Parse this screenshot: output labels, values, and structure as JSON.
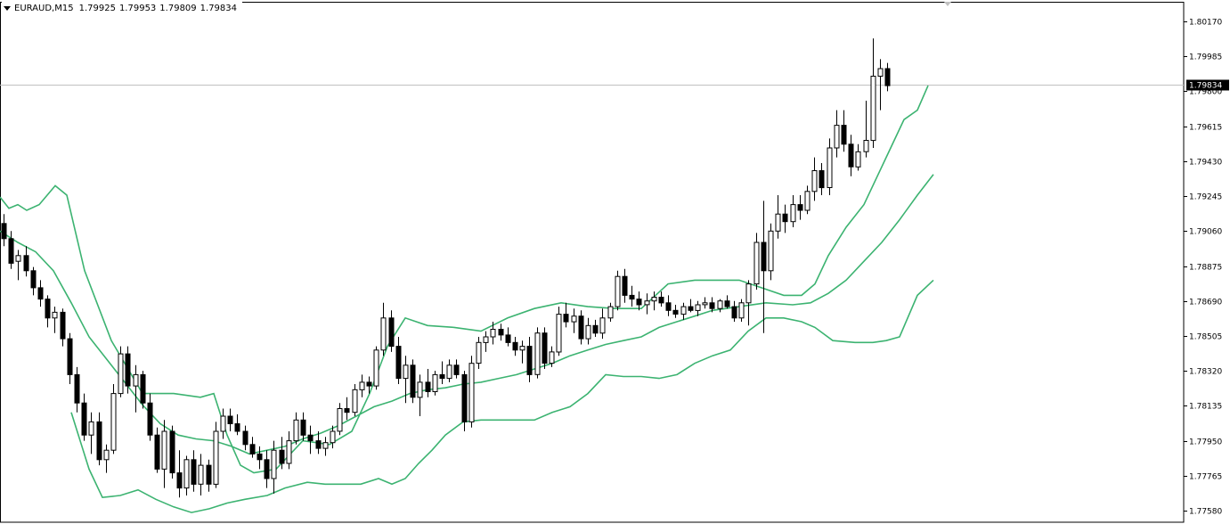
{
  "header": {
    "symbol_timeframe": "EURAUD,M15",
    "open": "1.79925",
    "high": "1.79953",
    "low": "1.79809",
    "close": "1.79834"
  },
  "colors": {
    "background": "#ffffff",
    "candle_up_body": "#ffffff",
    "candle_down_body": "#000000",
    "candle_outline": "#000000",
    "bollinger": "#3cb371",
    "bid_line": "#c0c0c0",
    "price_tag_bg": "#000000"
  },
  "chart_data": {
    "type": "candlestick",
    "instrument": "EURAUD",
    "timeframe": "M15",
    "y_axis_ticks": [
      "1.80170",
      "1.79985",
      "1.79800",
      "1.79615",
      "1.79430",
      "1.79245",
      "1.79060",
      "1.78875",
      "1.78690",
      "1.78505",
      "1.78320",
      "1.78135",
      "1.77950",
      "1.77765",
      "1.77580"
    ],
    "ylim": [
      1.7757,
      1.8026
    ],
    "current_price": "1.79834",
    "indicators": [
      "Bollinger Bands"
    ],
    "grid": false,
    "candles": [
      [
        1.791,
        1.7915,
        1.7898,
        1.7902
      ],
      [
        1.7902,
        1.7906,
        1.7886,
        1.7889
      ],
      [
        1.789,
        1.7896,
        1.788,
        1.7893
      ],
      [
        1.7893,
        1.7898,
        1.7882,
        1.7885
      ],
      [
        1.7885,
        1.7887,
        1.7872,
        1.7876
      ],
      [
        1.7876,
        1.788,
        1.7866,
        1.787
      ],
      [
        1.787,
        1.7872,
        1.7855,
        1.786
      ],
      [
        1.786,
        1.7866,
        1.7852,
        1.7863
      ],
      [
        1.7863,
        1.7865,
        1.7845,
        1.7849
      ],
      [
        1.7849,
        1.7852,
        1.7825,
        1.783
      ],
      [
        1.783,
        1.7834,
        1.781,
        1.7815
      ],
      [
        1.7815,
        1.782,
        1.7795,
        1.7798
      ],
      [
        1.7798,
        1.781,
        1.7788,
        1.7805
      ],
      [
        1.7805,
        1.781,
        1.7782,
        1.7785
      ],
      [
        1.7785,
        1.7793,
        1.7778,
        1.779
      ],
      [
        1.779,
        1.7825,
        1.7788,
        1.782
      ],
      [
        1.782,
        1.7845,
        1.7818,
        1.7841
      ],
      [
        1.7841,
        1.7845,
        1.782,
        1.7824
      ],
      [
        1.7824,
        1.7835,
        1.781,
        1.783
      ],
      [
        1.783,
        1.7832,
        1.7812,
        1.7815
      ],
      [
        1.7815,
        1.782,
        1.7795,
        1.7798
      ],
      [
        1.7798,
        1.7802,
        1.7778,
        1.778
      ],
      [
        1.778,
        1.7806,
        1.777,
        1.78
      ],
      [
        1.78,
        1.7803,
        1.7775,
        1.7778
      ],
      [
        1.7778,
        1.779,
        1.7765,
        1.777
      ],
      [
        1.777,
        1.7787,
        1.7766,
        1.7785
      ],
      [
        1.7785,
        1.779,
        1.7768,
        1.7772
      ],
      [
        1.7772,
        1.7788,
        1.7766,
        1.7782
      ],
      [
        1.7782,
        1.7785,
        1.7768,
        1.7772
      ],
      [
        1.7772,
        1.7805,
        1.777,
        1.78
      ],
      [
        1.78,
        1.7812,
        1.7796,
        1.7808
      ],
      [
        1.7808,
        1.7812,
        1.78,
        1.7804
      ],
      [
        1.7804,
        1.7809,
        1.7798,
        1.78
      ],
      [
        1.78,
        1.7803,
        1.779,
        1.7793
      ],
      [
        1.7793,
        1.7797,
        1.7786,
        1.7788
      ],
      [
        1.7788,
        1.7792,
        1.778,
        1.7785
      ],
      [
        1.7785,
        1.779,
        1.777,
        1.7775
      ],
      [
        1.7775,
        1.7795,
        1.7767,
        1.779
      ],
      [
        1.779,
        1.7797,
        1.778,
        1.7783
      ],
      [
        1.7783,
        1.78,
        1.778,
        1.7795
      ],
      [
        1.7795,
        1.781,
        1.7793,
        1.7806
      ],
      [
        1.7806,
        1.781,
        1.7795,
        1.7798
      ],
      [
        1.7798,
        1.7803,
        1.7788,
        1.7795
      ],
      [
        1.7795,
        1.78,
        1.7788,
        1.7791
      ],
      [
        1.7791,
        1.7797,
        1.7787,
        1.7794
      ],
      [
        1.7794,
        1.7803,
        1.7791,
        1.78
      ],
      [
        1.78,
        1.7815,
        1.7798,
        1.7812
      ],
      [
        1.7812,
        1.7818,
        1.7806,
        1.781
      ],
      [
        1.781,
        1.7825,
        1.7808,
        1.7822
      ],
      [
        1.7822,
        1.783,
        1.7818,
        1.7826
      ],
      [
        1.7826,
        1.7829,
        1.782,
        1.7824
      ],
      [
        1.7824,
        1.7845,
        1.7822,
        1.7843
      ],
      [
        1.7843,
        1.7868,
        1.784,
        1.786
      ],
      [
        1.786,
        1.7864,
        1.7842,
        1.7845
      ],
      [
        1.7845,
        1.785,
        1.7825,
        1.7828
      ],
      [
        1.7828,
        1.784,
        1.7815,
        1.7835
      ],
      [
        1.7835,
        1.7838,
        1.7815,
        1.7818
      ],
      [
        1.7818,
        1.783,
        1.7808,
        1.7826
      ],
      [
        1.7826,
        1.7833,
        1.7818,
        1.7821
      ],
      [
        1.7821,
        1.7832,
        1.7819,
        1.783
      ],
      [
        1.783,
        1.7837,
        1.7825,
        1.7828
      ],
      [
        1.7828,
        1.7838,
        1.7826,
        1.7835
      ],
      [
        1.7835,
        1.7838,
        1.7828,
        1.783
      ],
      [
        1.783,
        1.7832,
        1.78,
        1.7805
      ],
      [
        1.7805,
        1.784,
        1.7802,
        1.7836
      ],
      [
        1.7836,
        1.785,
        1.7833,
        1.7847
      ],
      [
        1.7847,
        1.7853,
        1.7842,
        1.785
      ],
      [
        1.785,
        1.7858,
        1.7846,
        1.7854
      ],
      [
        1.7854,
        1.7857,
        1.7848,
        1.7851
      ],
      [
        1.7851,
        1.7855,
        1.7845,
        1.7847
      ],
      [
        1.7847,
        1.785,
        1.784,
        1.7843
      ],
      [
        1.7843,
        1.7848,
        1.7836,
        1.7845
      ],
      [
        1.7845,
        1.785,
        1.7826,
        1.783
      ],
      [
        1.783,
        1.7855,
        1.7828,
        1.7852
      ],
      [
        1.7852,
        1.7855,
        1.7833,
        1.7836
      ],
      [
        1.7836,
        1.7845,
        1.7834,
        1.7842
      ],
      [
        1.7842,
        1.7866,
        1.784,
        1.7862
      ],
      [
        1.7862,
        1.7868,
        1.7855,
        1.7858
      ],
      [
        1.7858,
        1.7865,
        1.7852,
        1.7861
      ],
      [
        1.7861,
        1.7864,
        1.7846,
        1.7849
      ],
      [
        1.7849,
        1.786,
        1.7846,
        1.7856
      ],
      [
        1.7856,
        1.7859,
        1.785,
        1.7852
      ],
      [
        1.7852,
        1.7865,
        1.7849,
        1.786
      ],
      [
        1.786,
        1.7868,
        1.7858,
        1.7866
      ],
      [
        1.7866,
        1.7885,
        1.7864,
        1.7882
      ],
      [
        1.7882,
        1.7886,
        1.7868,
        1.7872
      ],
      [
        1.7872,
        1.7877,
        1.7866,
        1.787
      ],
      [
        1.787,
        1.7874,
        1.7864,
        1.7867
      ],
      [
        1.7867,
        1.7873,
        1.7862,
        1.7869
      ],
      [
        1.7869,
        1.7874,
        1.7864,
        1.7871
      ],
      [
        1.7871,
        1.7874,
        1.7866,
        1.7868
      ],
      [
        1.7868,
        1.7872,
        1.7861,
        1.7864
      ],
      [
        1.7864,
        1.7867,
        1.786,
        1.7862
      ],
      [
        1.7862,
        1.7868,
        1.7859,
        1.7866
      ],
      [
        1.7866,
        1.787,
        1.7863,
        1.7864
      ],
      [
        1.7864,
        1.7869,
        1.7861,
        1.7867
      ],
      [
        1.7867,
        1.7871,
        1.7865,
        1.7868
      ],
      [
        1.7868,
        1.7871,
        1.7863,
        1.7865
      ],
      [
        1.7865,
        1.787,
        1.7863,
        1.7869
      ],
      [
        1.7869,
        1.7872,
        1.7865,
        1.7866
      ],
      [
        1.7866,
        1.7869,
        1.7858,
        1.786
      ],
      [
        1.786,
        1.787,
        1.7858,
        1.7868
      ],
      [
        1.7868,
        1.788,
        1.7856,
        1.7878
      ],
      [
        1.7878,
        1.7905,
        1.7875,
        1.79
      ],
      [
        1.79,
        1.7922,
        1.7852,
        1.7885
      ],
      [
        1.7885,
        1.791,
        1.788,
        1.7906
      ],
      [
        1.7906,
        1.7925,
        1.7902,
        1.7915
      ],
      [
        1.7915,
        1.792,
        1.7905,
        1.7911
      ],
      [
        1.7911,
        1.7925,
        1.7908,
        1.792
      ],
      [
        1.792,
        1.7925,
        1.7912,
        1.7917
      ],
      [
        1.7917,
        1.793,
        1.7915,
        1.7927
      ],
      [
        1.7927,
        1.7945,
        1.7922,
        1.7938
      ],
      [
        1.7938,
        1.7942,
        1.7925,
        1.7929
      ],
      [
        1.7929,
        1.7955,
        1.7925,
        1.795
      ],
      [
        1.795,
        1.797,
        1.7945,
        1.7962
      ],
      [
        1.7962,
        1.797,
        1.7948,
        1.7952
      ],
      [
        1.7952,
        1.7957,
        1.7935,
        1.794
      ],
      [
        1.794,
        1.7952,
        1.7938,
        1.7948
      ],
      [
        1.7948,
        1.7975,
        1.7945,
        1.7954
      ],
      [
        1.7954,
        1.8008,
        1.795,
        1.7988
      ],
      [
        1.7988,
        1.7997,
        1.797,
        1.7992
      ],
      [
        1.7992,
        1.7995,
        1.798,
        1.7983
      ]
    ],
    "bollinger": {
      "upper": [
        [
          0,
          1.7924
        ],
        [
          10,
          1.7918
        ],
        [
          20,
          1.792
        ],
        [
          30,
          1.7917
        ],
        [
          44,
          1.792
        ],
        [
          62,
          1.793
        ],
        [
          75,
          1.7925
        ],
        [
          95,
          1.7885
        ],
        [
          125,
          1.7848
        ],
        [
          160,
          1.782
        ],
        [
          195,
          1.782
        ],
        [
          225,
          1.7818
        ],
        [
          240,
          1.782
        ],
        [
          255,
          1.7798
        ],
        [
          270,
          1.7782
        ],
        [
          285,
          1.7778
        ],
        [
          310,
          1.778
        ],
        [
          340,
          1.7795
        ],
        [
          370,
          1.7793
        ],
        [
          395,
          1.78
        ],
        [
          415,
          1.782
        ],
        [
          435,
          1.7845
        ],
        [
          455,
          1.786
        ],
        [
          480,
          1.7856
        ],
        [
          510,
          1.7855
        ],
        [
          540,
          1.7853
        ],
        [
          570,
          1.786
        ],
        [
          600,
          1.7865
        ],
        [
          630,
          1.7868
        ],
        [
          660,
          1.7866
        ],
        [
          690,
          1.7865
        ],
        [
          720,
          1.7865
        ],
        [
          750,
          1.7878
        ],
        [
          780,
          1.788
        ],
        [
          800,
          1.788
        ],
        [
          830,
          1.788
        ],
        [
          855,
          1.7876
        ],
        [
          880,
          1.7872
        ],
        [
          900,
          1.7872
        ],
        [
          915,
          1.7878
        ],
        [
          930,
          1.7893
        ],
        [
          950,
          1.7908
        ],
        [
          970,
          1.792
        ],
        [
          985,
          1.7935
        ],
        [
          1000,
          1.795
        ],
        [
          1015,
          1.7965
        ],
        [
          1030,
          1.797
        ],
        [
          1042,
          1.7983
        ]
      ],
      "middle": [
        [
          0,
          1.7906
        ],
        [
          20,
          1.79
        ],
        [
          40,
          1.7895
        ],
        [
          60,
          1.7885
        ],
        [
          80,
          1.7868
        ],
        [
          100,
          1.785
        ],
        [
          120,
          1.7838
        ],
        [
          140,
          1.7826
        ],
        [
          160,
          1.7814
        ],
        [
          180,
          1.7804
        ],
        [
          200,
          1.7798
        ],
        [
          220,
          1.7796
        ],
        [
          240,
          1.7795
        ],
        [
          260,
          1.7792
        ],
        [
          280,
          1.7788
        ],
        [
          300,
          1.779
        ],
        [
          320,
          1.7792
        ],
        [
          340,
          1.7796
        ],
        [
          360,
          1.7799
        ],
        [
          380,
          1.7803
        ],
        [
          400,
          1.7808
        ],
        [
          420,
          1.7813
        ],
        [
          440,
          1.7816
        ],
        [
          460,
          1.782
        ],
        [
          480,
          1.7822
        ],
        [
          500,
          1.7823
        ],
        [
          520,
          1.7825
        ],
        [
          540,
          1.7826
        ],
        [
          560,
          1.7828
        ],
        [
          580,
          1.783
        ],
        [
          600,
          1.7833
        ],
        [
          620,
          1.7836
        ],
        [
          640,
          1.784
        ],
        [
          660,
          1.7843
        ],
        [
          680,
          1.7846
        ],
        [
          700,
          1.7848
        ],
        [
          720,
          1.785
        ],
        [
          740,
          1.7855
        ],
        [
          760,
          1.7858
        ],
        [
          780,
          1.7861
        ],
        [
          800,
          1.7864
        ],
        [
          830,
          1.7866
        ],
        [
          860,
          1.7868
        ],
        [
          890,
          1.7867
        ],
        [
          910,
          1.7868
        ],
        [
          930,
          1.7873
        ],
        [
          950,
          1.788
        ],
        [
          970,
          1.789
        ],
        [
          990,
          1.79
        ],
        [
          1010,
          1.7912
        ],
        [
          1030,
          1.7925
        ],
        [
          1048,
          1.7936
        ]
      ],
      "lower": [
        [
          80,
          1.781
        ],
        [
          100,
          1.778
        ],
        [
          115,
          1.7765
        ],
        [
          135,
          1.7766
        ],
        [
          155,
          1.7769
        ],
        [
          175,
          1.7764
        ],
        [
          195,
          1.776
        ],
        [
          215,
          1.7757
        ],
        [
          235,
          1.7759
        ],
        [
          255,
          1.7762
        ],
        [
          275,
          1.7764
        ],
        [
          300,
          1.7766
        ],
        [
          320,
          1.777
        ],
        [
          345,
          1.7773
        ],
        [
          365,
          1.7772
        ],
        [
          385,
          1.7772
        ],
        [
          405,
          1.7772
        ],
        [
          425,
          1.7775
        ],
        [
          440,
          1.7772
        ],
        [
          455,
          1.7775
        ],
        [
          470,
          1.7783
        ],
        [
          485,
          1.779
        ],
        [
          500,
          1.7798
        ],
        [
          520,
          1.7805
        ],
        [
          540,
          1.7806
        ],
        [
          560,
          1.7806
        ],
        [
          580,
          1.7806
        ],
        [
          600,
          1.7806
        ],
        [
          620,
          1.781
        ],
        [
          640,
          1.7813
        ],
        [
          660,
          1.782
        ],
        [
          680,
          1.783
        ],
        [
          700,
          1.7829
        ],
        [
          720,
          1.7829
        ],
        [
          740,
          1.7828
        ],
        [
          760,
          1.783
        ],
        [
          780,
          1.7836
        ],
        [
          800,
          1.784
        ],
        [
          820,
          1.7843
        ],
        [
          840,
          1.7853
        ],
        [
          860,
          1.786
        ],
        [
          880,
          1.786
        ],
        [
          900,
          1.7858
        ],
        [
          915,
          1.7855
        ],
        [
          935,
          1.7848
        ],
        [
          960,
          1.7847
        ],
        [
          980,
          1.7847
        ],
        [
          995,
          1.7848
        ],
        [
          1010,
          1.785
        ],
        [
          1030,
          1.7872
        ],
        [
          1048,
          1.788
        ]
      ]
    }
  }
}
